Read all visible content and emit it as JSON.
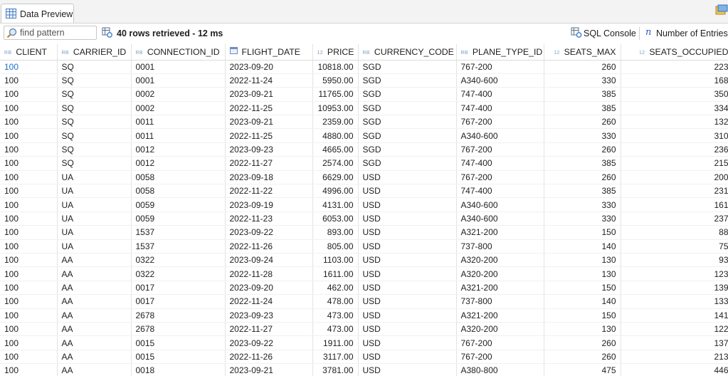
{
  "tab": {
    "label": "Data Preview"
  },
  "toolbar": {
    "search_placeholder": "find pattern",
    "rows_retrieved": "40 rows retrieved - 12 ms",
    "sql_console": "SQL Console",
    "number_of_entries": "Number of Entries"
  },
  "columns": [
    {
      "label": "CLIENT",
      "type": "RB",
      "numeric": false
    },
    {
      "label": "CARRIER_ID",
      "type": "RB",
      "numeric": false
    },
    {
      "label": "CONNECTION_ID",
      "type": "RB",
      "numeric": false
    },
    {
      "label": "FLIGHT_DATE",
      "type": "calendar",
      "numeric": false
    },
    {
      "label": "PRICE",
      "type": "12",
      "numeric": true
    },
    {
      "label": "CURRENCY_CODE",
      "type": "RB",
      "numeric": false
    },
    {
      "label": "PLANE_TYPE_ID",
      "type": "RB",
      "numeric": false
    },
    {
      "label": "SEATS_MAX",
      "type": "12",
      "numeric": true
    },
    {
      "label": "SEATS_OCCUPIED",
      "type": "12",
      "numeric": true
    }
  ],
  "rows": [
    [
      "100",
      "SQ",
      "0001",
      "2023-09-20",
      "10818.00",
      "SGD",
      "767-200",
      "260",
      "223"
    ],
    [
      "100",
      "SQ",
      "0001",
      "2022-11-24",
      "5950.00",
      "SGD",
      "A340-600",
      "330",
      "168"
    ],
    [
      "100",
      "SQ",
      "0002",
      "2023-09-21",
      "11765.00",
      "SGD",
      "747-400",
      "385",
      "350"
    ],
    [
      "100",
      "SQ",
      "0002",
      "2022-11-25",
      "10953.00",
      "SGD",
      "747-400",
      "385",
      "334"
    ],
    [
      "100",
      "SQ",
      "0011",
      "2023-09-21",
      "2359.00",
      "SGD",
      "767-200",
      "260",
      "132"
    ],
    [
      "100",
      "SQ",
      "0011",
      "2022-11-25",
      "4880.00",
      "SGD",
      "A340-600",
      "330",
      "310"
    ],
    [
      "100",
      "SQ",
      "0012",
      "2023-09-23",
      "4665.00",
      "SGD",
      "767-200",
      "260",
      "236"
    ],
    [
      "100",
      "SQ",
      "0012",
      "2022-11-27",
      "2574.00",
      "SGD",
      "747-400",
      "385",
      "215"
    ],
    [
      "100",
      "UA",
      "0058",
      "2023-09-18",
      "6629.00",
      "USD",
      "767-200",
      "260",
      "200"
    ],
    [
      "100",
      "UA",
      "0058",
      "2022-11-22",
      "4996.00",
      "USD",
      "747-400",
      "385",
      "231"
    ],
    [
      "100",
      "UA",
      "0059",
      "2023-09-19",
      "4131.00",
      "USD",
      "A340-600",
      "330",
      "161"
    ],
    [
      "100",
      "UA",
      "0059",
      "2022-11-23",
      "6053.00",
      "USD",
      "A340-600",
      "330",
      "237"
    ],
    [
      "100",
      "UA",
      "1537",
      "2023-09-22",
      "893.00",
      "USD",
      "A321-200",
      "150",
      "88"
    ],
    [
      "100",
      "UA",
      "1537",
      "2022-11-26",
      "805.00",
      "USD",
      "737-800",
      "140",
      "75"
    ],
    [
      "100",
      "AA",
      "0322",
      "2023-09-24",
      "1103.00",
      "USD",
      "A320-200",
      "130",
      "93"
    ],
    [
      "100",
      "AA",
      "0322",
      "2022-11-28",
      "1611.00",
      "USD",
      "A320-200",
      "130",
      "123"
    ],
    [
      "100",
      "AA",
      "0017",
      "2023-09-20",
      "462.00",
      "USD",
      "A321-200",
      "150",
      "139"
    ],
    [
      "100",
      "AA",
      "0017",
      "2022-11-24",
      "478.00",
      "USD",
      "737-800",
      "140",
      "133"
    ],
    [
      "100",
      "AA",
      "2678",
      "2023-09-23",
      "473.00",
      "USD",
      "A321-200",
      "150",
      "141"
    ],
    [
      "100",
      "AA",
      "2678",
      "2022-11-27",
      "473.00",
      "USD",
      "A320-200",
      "130",
      "122"
    ],
    [
      "100",
      "AA",
      "0015",
      "2023-09-22",
      "1911.00",
      "USD",
      "767-200",
      "260",
      "137"
    ],
    [
      "100",
      "AA",
      "0015",
      "2022-11-26",
      "3117.00",
      "USD",
      "767-200",
      "260",
      "213"
    ],
    [
      "100",
      "AA",
      "0018",
      "2023-09-21",
      "3781.00",
      "USD",
      "A380-800",
      "475",
      "446"
    ]
  ]
}
